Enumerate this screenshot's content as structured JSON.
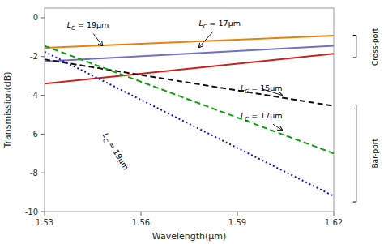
{
  "chart_data": {
    "type": "line",
    "xlabel": "Wavelength(μm)",
    "ylabel": "Transmission(dB)",
    "xlim": [
      1.53,
      1.62
    ],
    "ylim": [
      -10,
      0.5
    ],
    "xticks": [
      1.53,
      1.56,
      1.59,
      1.62
    ],
    "yticks": [
      0,
      -2,
      -4,
      -6,
      -8,
      -10
    ],
    "series": [
      {
        "color": "#E8820C",
        "line_style": "solid",
        "x": [
          1.53,
          1.62
        ],
        "values": [
          -1.55,
          -0.92
        ]
      },
      {
        "color": "#7070C8",
        "line_style": "solid",
        "x": [
          1.53,
          1.62
        ],
        "values": [
          -2.25,
          -1.45
        ]
      },
      {
        "color": "#CC2020",
        "line_style": "solid",
        "x": [
          1.53,
          1.62
        ],
        "values": [
          -3.4,
          -1.85
        ]
      },
      {
        "color": "#101010",
        "line_style": "dashed",
        "x": [
          1.53,
          1.62
        ],
        "values": [
          -2.15,
          -4.55
        ]
      },
      {
        "color": "#10A010",
        "line_style": "dashed",
        "x": [
          1.53,
          1.62
        ],
        "values": [
          -1.45,
          -7.0
        ]
      },
      {
        "color": "#1515CC",
        "line_style": "dotted",
        "x": [
          1.53,
          1.62
        ],
        "values": [
          -1.75,
          -9.2
        ]
      }
    ],
    "annotations": [
      {
        "text": "LC = 19µm",
        "x": 1.537,
        "y": -0.52,
        "arrow_x": 1.548,
        "arrow_y": -1.45
      },
      {
        "text": "LC = 17µm",
        "x": 1.578,
        "y": -0.42,
        "arrow_x": 1.578,
        "arrow_y": -1.53
      },
      {
        "text": "LC = 15µm",
        "x": 1.591,
        "y": -3.75,
        "arrow_x": 1.604,
        "arrow_y": -4.0
      },
      {
        "text": "LC = 17µm",
        "x": 1.591,
        "y": -5.2,
        "arrow_x": 1.604,
        "arrow_y": -5.8
      },
      {
        "text": "LC = 19µm",
        "x": 1.548,
        "y": -6.05
      }
    ],
    "brackets": [
      {
        "text": "Cross-port",
        "x": 1.627,
        "y0": -0.9,
        "y1": -2.05,
        "text_x": 1.632,
        "y": -1.5
      },
      {
        "text": "Bar-port",
        "x": 1.627,
        "y0": -4.5,
        "y1": -9.5,
        "text_x": 1.632,
        "y": -7.0
      }
    ]
  }
}
